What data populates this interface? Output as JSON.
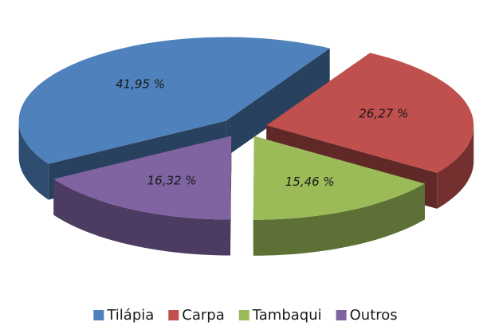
{
  "chart_data": {
    "type": "pie",
    "categories": [
      "Tilápia",
      "Carpa",
      "Tambaqui",
      "Outros"
    ],
    "values": [
      41.95,
      26.27,
      15.46,
      16.32
    ],
    "value_labels": [
      "41,95 %",
      "26,27 %",
      "15,46 %",
      "16,32 %"
    ],
    "colors": [
      "#4f81bd",
      "#c0504d",
      "#9bbb59",
      "#8064a2"
    ],
    "legend": "bottom"
  }
}
